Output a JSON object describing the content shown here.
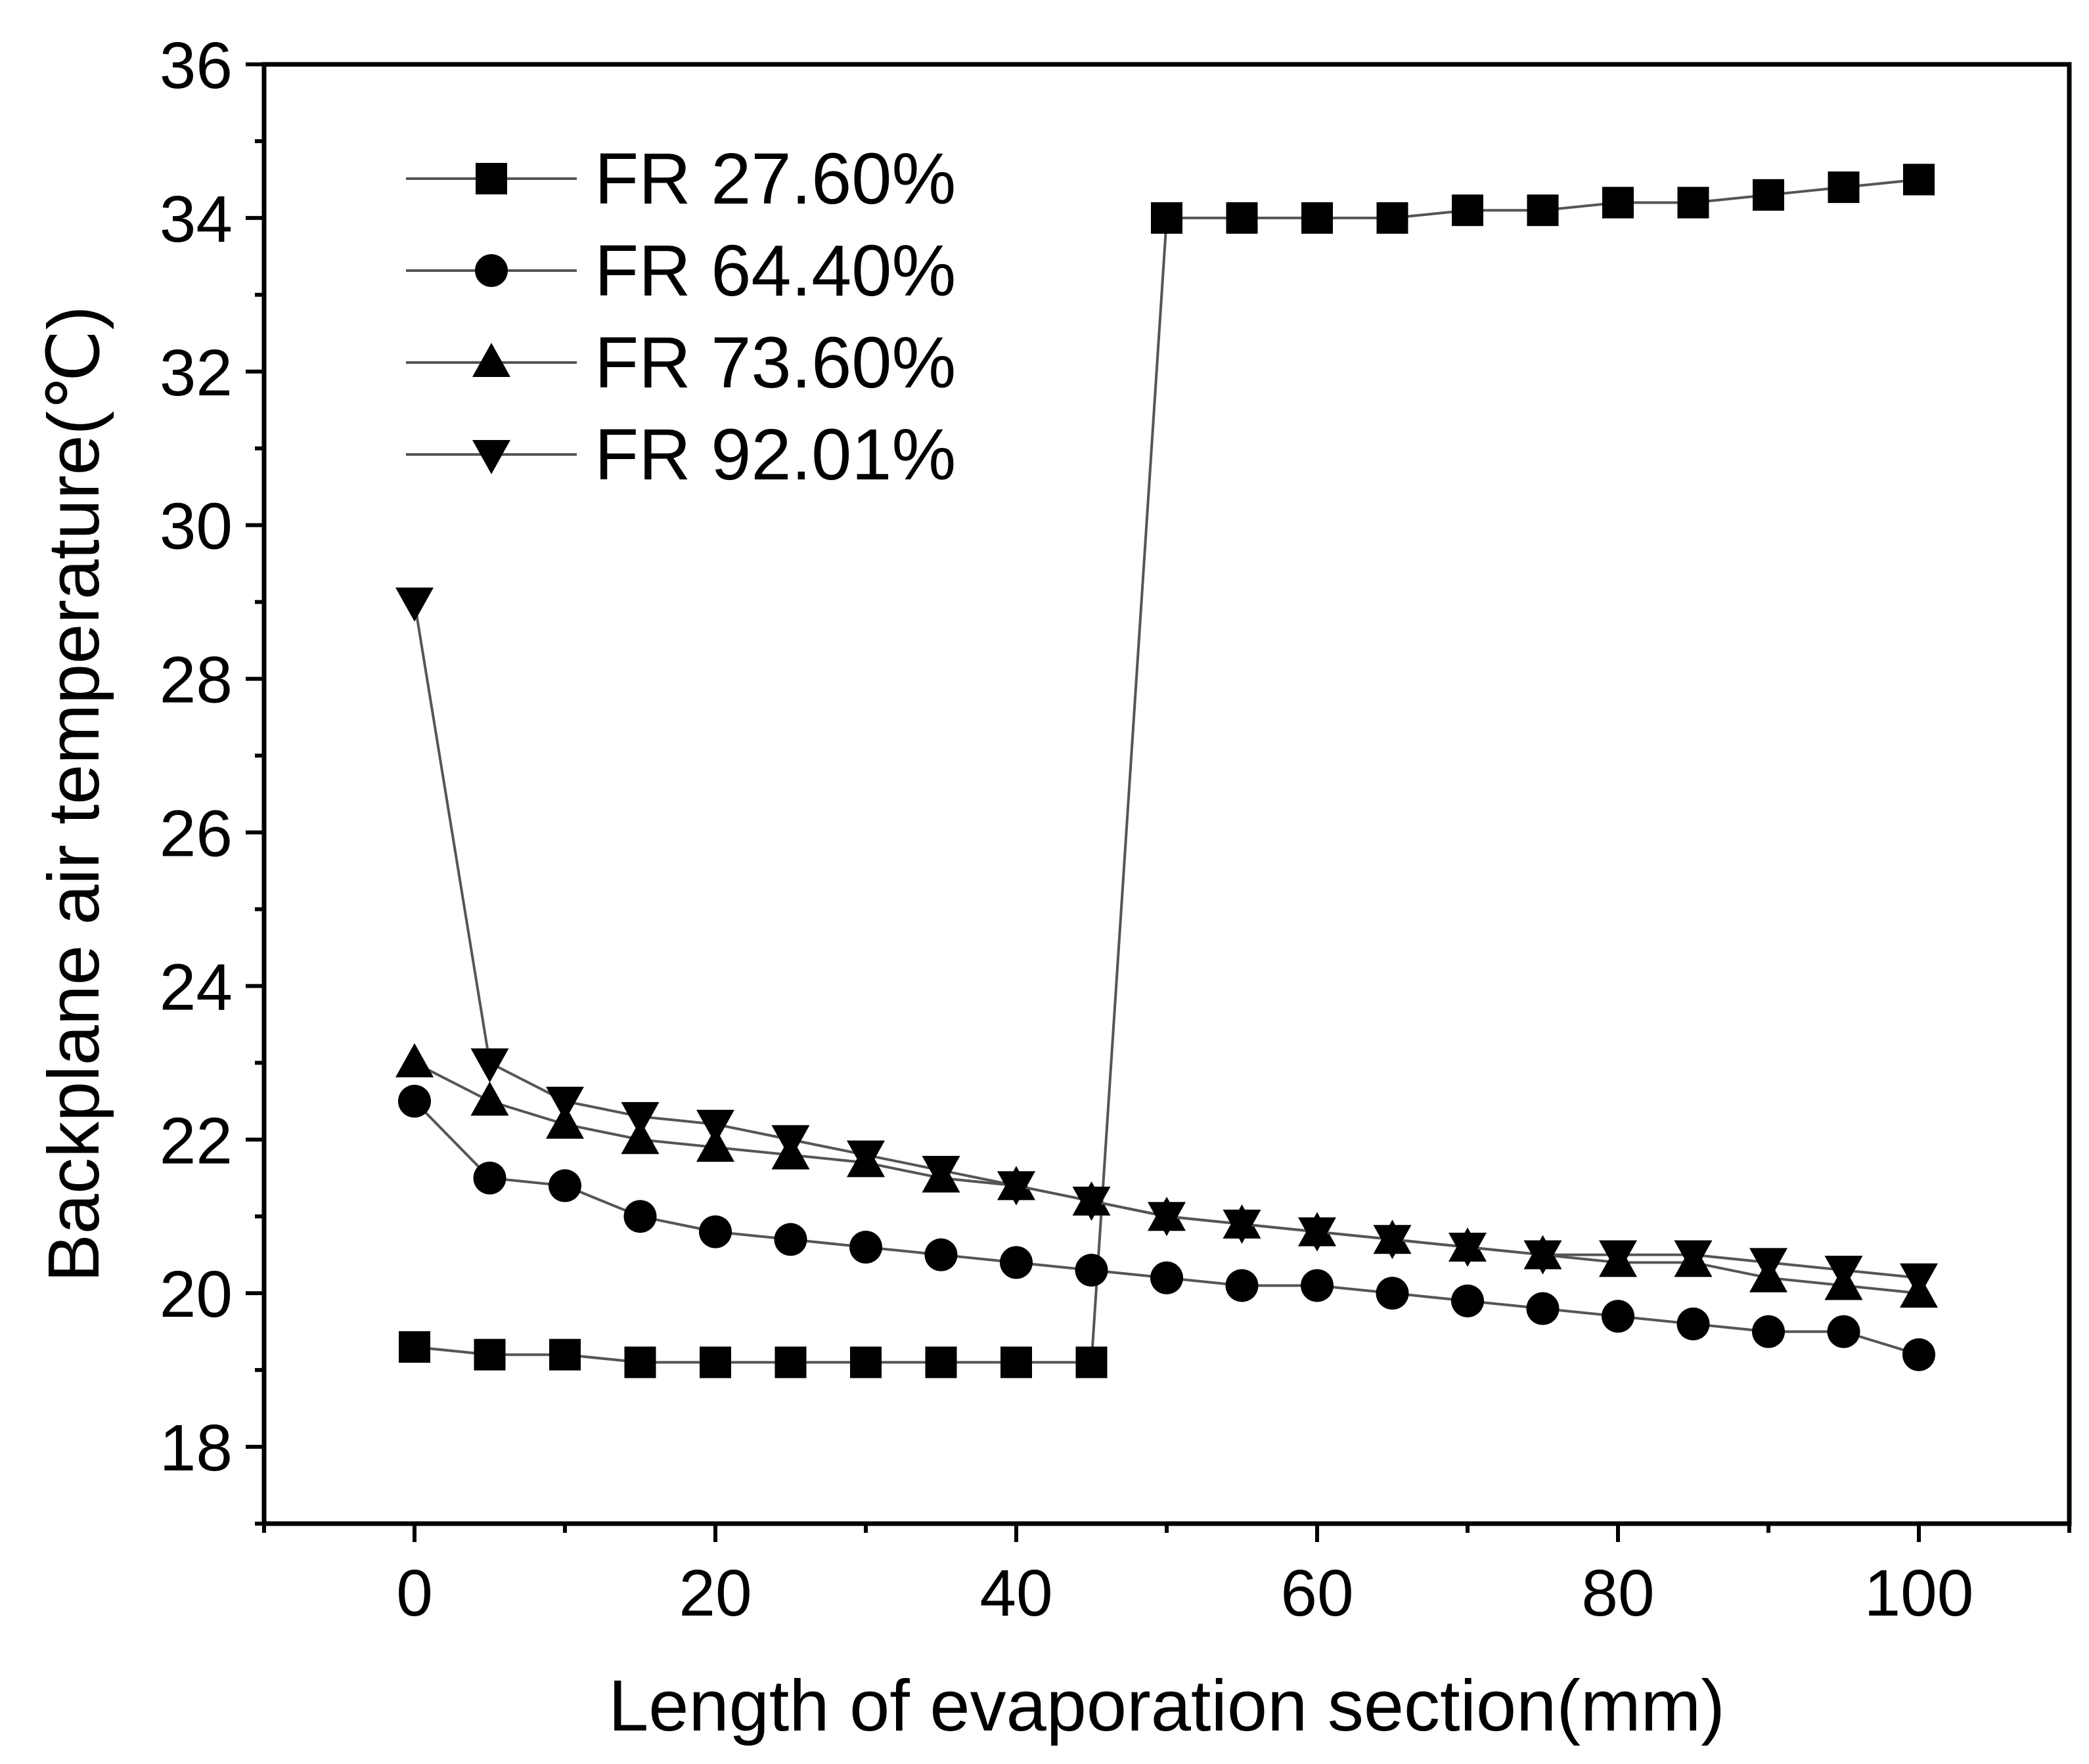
{
  "chart_data": {
    "type": "line",
    "title": "",
    "xlabel": "Length of evaporation section(mm)",
    "ylabel": "Backplane air temperature(℃)",
    "xlim": [
      -10,
      110
    ],
    "ylim": [
      17,
      36
    ],
    "x_ticks": [
      0,
      20,
      40,
      60,
      80,
      100
    ],
    "y_ticks": [
      18,
      20,
      22,
      24,
      26,
      28,
      30,
      32,
      34,
      36
    ],
    "x_minor_step": 10,
    "y_minor_step": 1,
    "legend_position": "top-left",
    "grid": false,
    "x": [
      0,
      5,
      10,
      15,
      20,
      25,
      30,
      35,
      40,
      45,
      50,
      55,
      60,
      65,
      70,
      75,
      80,
      85,
      90,
      95,
      100
    ],
    "series": [
      {
        "name": "FR 27.60%",
        "marker": "square",
        "values": [
          19.3,
          19.2,
          19.2,
          19.1,
          19.1,
          19.1,
          19.1,
          19.1,
          19.1,
          19.1,
          34.0,
          34.0,
          34.0,
          34.0,
          34.1,
          34.1,
          34.2,
          34.2,
          34.3,
          34.4,
          34.5
        ]
      },
      {
        "name": "FR 64.40%",
        "marker": "circle",
        "values": [
          22.5,
          21.5,
          21.4,
          21.0,
          20.8,
          20.7,
          20.6,
          20.5,
          20.4,
          20.3,
          20.2,
          20.1,
          20.1,
          20.0,
          19.9,
          19.8,
          19.7,
          19.6,
          19.5,
          19.5,
          19.2
        ]
      },
      {
        "name": "FR 73.60%",
        "marker": "triangle-up",
        "values": [
          23.0,
          22.5,
          22.2,
          22.0,
          21.9,
          21.8,
          21.7,
          21.5,
          21.4,
          21.2,
          21.0,
          20.9,
          20.8,
          20.7,
          20.6,
          20.5,
          20.4,
          20.4,
          20.2,
          20.1,
          20.0
        ]
      },
      {
        "name": "FR 92.01%",
        "marker": "triangle-down",
        "values": [
          29.0,
          23.0,
          22.5,
          22.3,
          22.2,
          22.0,
          21.8,
          21.6,
          21.4,
          21.2,
          21.0,
          20.9,
          20.8,
          20.7,
          20.6,
          20.5,
          20.5,
          20.5,
          20.4,
          20.3,
          20.2
        ]
      }
    ],
    "colors": {
      "line": "#555555",
      "marker": "#000000",
      "axis": "#000000"
    }
  }
}
